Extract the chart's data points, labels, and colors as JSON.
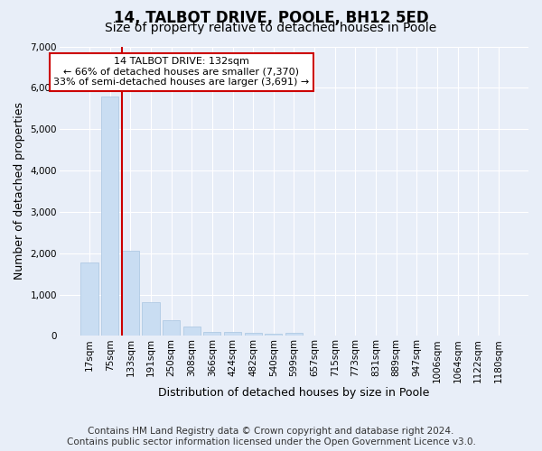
{
  "title": "14, TALBOT DRIVE, POOLE, BH12 5ED",
  "subtitle": "Size of property relative to detached houses in Poole",
  "xlabel": "Distribution of detached houses by size in Poole",
  "ylabel": "Number of detached properties",
  "footer_line1": "Contains HM Land Registry data © Crown copyright and database right 2024.",
  "footer_line2": "Contains public sector information licensed under the Open Government Licence v3.0.",
  "bar_labels": [
    "17sqm",
    "75sqm",
    "133sqm",
    "191sqm",
    "250sqm",
    "308sqm",
    "366sqm",
    "424sqm",
    "482sqm",
    "540sqm",
    "599sqm",
    "657sqm",
    "715sqm",
    "773sqm",
    "831sqm",
    "889sqm",
    "947sqm",
    "1006sqm",
    "1064sqm",
    "1122sqm",
    "1180sqm"
  ],
  "bar_values": [
    1780,
    5780,
    2060,
    820,
    380,
    220,
    100,
    100,
    70,
    60,
    70,
    0,
    0,
    0,
    0,
    0,
    0,
    0,
    0,
    0,
    0
  ],
  "bar_color": "#c9ddf2",
  "bar_edge_color": "#a8c4e0",
  "highlight_bar_index": 2,
  "highlight_color": "#cc0000",
  "annotation_title": "14 TALBOT DRIVE: 132sqm",
  "annotation_line1": "← 66% of detached houses are smaller (7,370)",
  "annotation_line2": "33% of semi-detached houses are larger (3,691) →",
  "ylim": [
    0,
    7000
  ],
  "yticks": [
    0,
    1000,
    2000,
    3000,
    4000,
    5000,
    6000,
    7000
  ],
  "background_color": "#e8eef8",
  "grid_color": "#ffffff",
  "title_fontsize": 12,
  "subtitle_fontsize": 10,
  "axis_label_fontsize": 9,
  "tick_fontsize": 7.5,
  "footer_fontsize": 7.5
}
